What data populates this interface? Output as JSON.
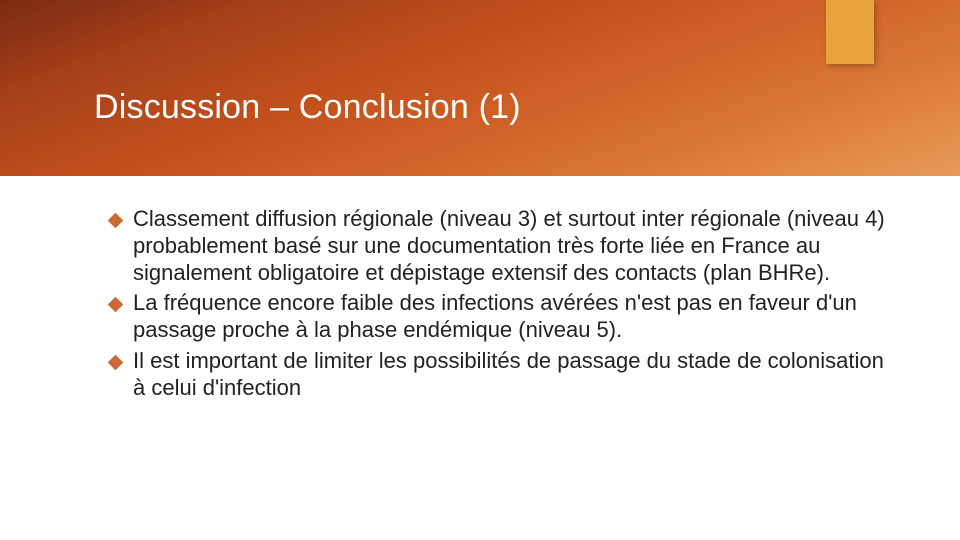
{
  "header": {
    "title": "Discussion – Conclusion (1)",
    "band_gradient_start": "#7a2a12",
    "band_gradient_end": "#e79a55",
    "accent_tab_color": "#e8a33d",
    "title_color": "#ffffff",
    "title_fontsize": 34
  },
  "body": {
    "bullet_color": "#cc6a34",
    "text_color": "#222222",
    "text_fontsize": 22,
    "bullets": [
      "Classement diffusion régionale (niveau 3) et surtout inter régionale (niveau 4) probablement basé sur une documentation très forte liée en France au signalement obligatoire et dépistage extensif des contacts (plan BHRe).",
      "La fréquence encore faible des infections avérées n'est pas en faveur d'un passage proche à la phase endémique (niveau 5).",
      "Il est important de limiter les possibilités de passage du stade de colonisation à celui d'infection"
    ]
  },
  "background_color": "#ffffff",
  "slide_width": 960,
  "slide_height": 540
}
